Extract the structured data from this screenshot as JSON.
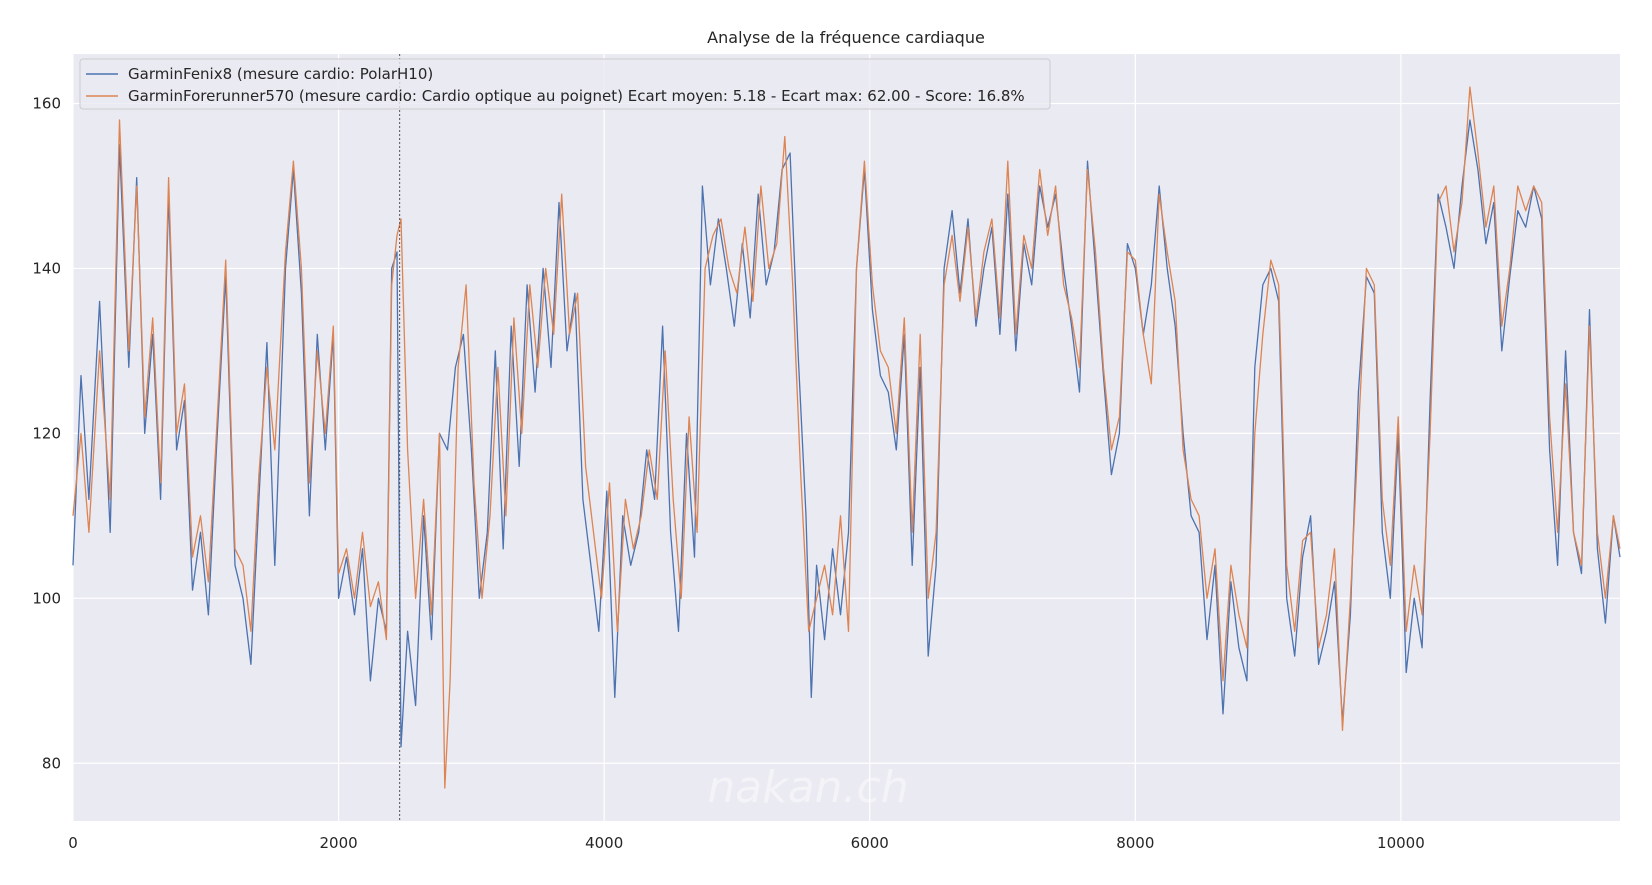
{
  "chart_data": {
    "type": "line",
    "title": "Analyse de la fréquence cardiaque",
    "xlabel": "",
    "ylabel": "",
    "xlim": [
      0,
      11650
    ],
    "ylim": [
      73,
      166
    ],
    "xticks": [
      0,
      2000,
      4000,
      6000,
      8000,
      10000
    ],
    "yticks": [
      80,
      100,
      120,
      140,
      160
    ],
    "grid": true,
    "legend_position": "top-left",
    "marker_x": 2460,
    "watermark": "nakan.ch",
    "series": [
      {
        "name": "GarminFenix8 (mesure cardio: PolarH10)",
        "color": "#4c72b0",
        "x": [
          0,
          60,
          120,
          200,
          280,
          350,
          420,
          480,
          540,
          600,
          660,
          720,
          780,
          840,
          900,
          960,
          1020,
          1080,
          1150,
          1220,
          1280,
          1340,
          1400,
          1460,
          1520,
          1600,
          1660,
          1720,
          1780,
          1840,
          1900,
          1960,
          2000,
          2060,
          2120,
          2180,
          2240,
          2300,
          2360,
          2400,
          2440,
          2470,
          2520,
          2580,
          2640,
          2700,
          2760,
          2820,
          2880,
          2940,
          3000,
          3060,
          3120,
          3180,
          3240,
          3300,
          3360,
          3420,
          3480,
          3540,
          3600,
          3660,
          3720,
          3780,
          3840,
          3900,
          3960,
          4020,
          4080,
          4140,
          4200,
          4260,
          4320,
          4380,
          4440,
          4500,
          4560,
          4620,
          4680,
          4740,
          4800,
          4860,
          4920,
          4980,
          5040,
          5100,
          5160,
          5220,
          5280,
          5340,
          5400,
          5460,
          5520,
          5560,
          5600,
          5660,
          5720,
          5780,
          5840,
          5900,
          5960,
          6020,
          6080,
          6140,
          6200,
          6260,
          6320,
          6380,
          6440,
          6500,
          6560,
          6620,
          6680,
          6740,
          6800,
          6860,
          6920,
          6980,
          7040,
          7100,
          7160,
          7220,
          7280,
          7340,
          7400,
          7460,
          7520,
          7580,
          7640,
          7700,
          7760,
          7820,
          7880,
          7940,
          8000,
          8060,
          8120,
          8180,
          8240,
          8300,
          8360,
          8420,
          8480,
          8540,
          8600,
          8660,
          8720,
          8780,
          8840,
          8900,
          8960,
          9020,
          9080,
          9140,
          9200,
          9260,
          9320,
          9380,
          9440,
          9500,
          9560,
          9620,
          9680,
          9740,
          9800,
          9860,
          9920,
          9980,
          10040,
          10100,
          10160,
          10220,
          10280,
          10340,
          10400,
          10460,
          10520,
          10580,
          10640,
          10700,
          10760,
          10820,
          10880,
          10940,
          11000,
          11060,
          11120,
          11180,
          11240,
          11300,
          11360,
          11420,
          11480,
          11540,
          11600,
          11650
        ],
        "y": [
          104,
          127,
          112,
          136,
          108,
          155,
          128,
          151,
          120,
          132,
          112,
          149,
          118,
          124,
          101,
          108,
          98,
          118,
          139,
          104,
          100,
          92,
          112,
          131,
          104,
          140,
          152,
          137,
          110,
          132,
          118,
          132,
          100,
          105,
          98,
          106,
          90,
          100,
          96,
          140,
          142,
          82,
          96,
          87,
          110,
          95,
          120,
          118,
          128,
          132,
          118,
          100,
          108,
          130,
          106,
          133,
          116,
          138,
          125,
          140,
          128,
          148,
          130,
          137,
          112,
          104,
          96,
          113,
          88,
          110,
          104,
          108,
          118,
          112,
          133,
          108,
          96,
          120,
          105,
          150,
          138,
          146,
          140,
          133,
          143,
          134,
          149,
          138,
          142,
          152,
          154,
          130,
          110,
          88,
          104,
          95,
          106,
          98,
          108,
          140,
          152,
          135,
          127,
          125,
          118,
          132,
          104,
          128,
          93,
          104,
          140,
          147,
          137,
          146,
          133,
          140,
          145,
          132,
          149,
          130,
          143,
          138,
          150,
          145,
          149,
          140,
          133,
          125,
          153,
          140,
          127,
          115,
          120,
          143,
          140,
          132,
          138,
          150,
          140,
          133,
          120,
          110,
          108,
          95,
          104,
          86,
          102,
          94,
          90,
          128,
          138,
          140,
          136,
          100,
          93,
          105,
          110,
          92,
          96,
          102,
          85,
          98,
          125,
          139,
          137,
          108,
          100,
          120,
          91,
          100,
          94,
          124,
          149,
          145,
          140,
          150,
          158,
          152,
          143,
          148,
          130,
          139,
          147,
          145,
          150,
          146,
          118,
          104,
          130,
          108,
          103,
          135,
          106,
          97,
          110,
          105
        ]
      },
      {
        "name": "GarminForerunner570 (mesure cardio: Cardio optique au poignet) Ecart moyen: 5.18 - Ecart max: 62.00 - Score: 16.8%",
        "color": "#dd8452",
        "x": [
          0,
          60,
          120,
          200,
          280,
          350,
          420,
          480,
          540,
          600,
          660,
          720,
          780,
          840,
          900,
          960,
          1020,
          1080,
          1150,
          1220,
          1280,
          1340,
          1400,
          1460,
          1520,
          1600,
          1660,
          1720,
          1780,
          1840,
          1900,
          1960,
          2000,
          2060,
          2120,
          2180,
          2240,
          2300,
          2360,
          2400,
          2440,
          2470,
          2520,
          2580,
          2640,
          2700,
          2760,
          2800,
          2840,
          2900,
          2960,
          3020,
          3080,
          3140,
          3200,
          3260,
          3320,
          3380,
          3440,
          3500,
          3560,
          3620,
          3680,
          3740,
          3800,
          3860,
          3920,
          3980,
          4040,
          4100,
          4160,
          4220,
          4280,
          4340,
          4400,
          4460,
          4520,
          4580,
          4640,
          4700,
          4760,
          4820,
          4880,
          4940,
          5000,
          5060,
          5120,
          5180,
          5240,
          5300,
          5360,
          5420,
          5480,
          5540,
          5600,
          5660,
          5720,
          5780,
          5840,
          5900,
          5960,
          6020,
          6080,
          6140,
          6200,
          6260,
          6320,
          6380,
          6440,
          6500,
          6560,
          6620,
          6680,
          6740,
          6800,
          6860,
          6920,
          6980,
          7040,
          7100,
          7160,
          7220,
          7280,
          7340,
          7400,
          7460,
          7520,
          7580,
          7640,
          7700,
          7760,
          7820,
          7880,
          7940,
          8000,
          8060,
          8120,
          8180,
          8240,
          8300,
          8360,
          8420,
          8480,
          8540,
          8600,
          8660,
          8720,
          8780,
          8840,
          8900,
          8960,
          9020,
          9080,
          9140,
          9200,
          9260,
          9320,
          9380,
          9440,
          9500,
          9560,
          9620,
          9680,
          9740,
          9800,
          9860,
          9920,
          9980,
          10040,
          10100,
          10160,
          10220,
          10280,
          10340,
          10400,
          10460,
          10520,
          10580,
          10640,
          10700,
          10760,
          10820,
          10880,
          10940,
          11000,
          11060,
          11120,
          11180,
          11240,
          11300,
          11360,
          11420,
          11480,
          11540,
          11600,
          11650
        ],
        "y": [
          110,
          120,
          108,
          130,
          112,
          158,
          130,
          150,
          122,
          134,
          114,
          151,
          120,
          126,
          105,
          110,
          102,
          120,
          141,
          106,
          104,
          96,
          115,
          128,
          118,
          142,
          153,
          140,
          114,
          130,
          120,
          133,
          103,
          106,
          100,
          108,
          99,
          102,
          95,
          138,
          144,
          146,
          118,
          100,
          112,
          98,
          120,
          77,
          90,
          128,
          138,
          114,
          100,
          110,
          128,
          110,
          134,
          120,
          138,
          128,
          140,
          132,
          149,
          132,
          137,
          116,
          108,
          100,
          114,
          96,
          112,
          106,
          110,
          118,
          112,
          130,
          112,
          100,
          122,
          108,
          140,
          144,
          146,
          140,
          137,
          145,
          136,
          150,
          140,
          143,
          156,
          138,
          115,
          96,
          100,
          104,
          98,
          110,
          96,
          140,
          153,
          138,
          130,
          128,
          120,
          134,
          108,
          132,
          100,
          108,
          138,
          144,
          136,
          145,
          134,
          142,
          146,
          134,
          153,
          132,
          144,
          140,
          152,
          144,
          150,
          138,
          134,
          128,
          152,
          142,
          128,
          118,
          122,
          142,
          141,
          132,
          126,
          149,
          142,
          136,
          118,
          112,
          110,
          100,
          106,
          90,
          104,
          98,
          94,
          120,
          132,
          141,
          138,
          104,
          96,
          107,
          108,
          94,
          98,
          106,
          84,
          100,
          120,
          140,
          138,
          112,
          104,
          122,
          96,
          104,
          98,
          120,
          148,
          150,
          142,
          148,
          162,
          154,
          145,
          150,
          133,
          140,
          150,
          147,
          150,
          148,
          122,
          108,
          126,
          108,
          104,
          133,
          108,
          100,
          110,
          106
        ]
      }
    ]
  }
}
